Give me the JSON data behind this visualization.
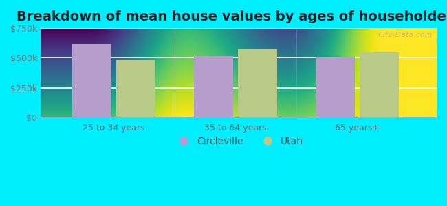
{
  "title": "Breakdown of mean house values by ages of householders",
  "categories": [
    "25 to 34 years",
    "35 to 64 years",
    "65 years+"
  ],
  "circleville_values": [
    615000,
    520000,
    510000
  ],
  "utah_values": [
    480000,
    570000,
    550000
  ],
  "circleville_color": "#b59dcc",
  "utah_color": "#b8c98a",
  "ylim": [
    0,
    750000
  ],
  "yticks": [
    0,
    250000,
    500000,
    750000
  ],
  "ytick_labels": [
    "$0",
    "$250k",
    "$500k",
    "$750k"
  ],
  "bar_width": 0.32,
  "background_color": "#00eeff",
  "plot_bg_top": "#d4ede0",
  "plot_bg_bottom": "#edfaef",
  "legend_labels": [
    "Circleville",
    "Utah"
  ],
  "title_fontsize": 14,
  "tick_fontsize": 9,
  "legend_fontsize": 10
}
